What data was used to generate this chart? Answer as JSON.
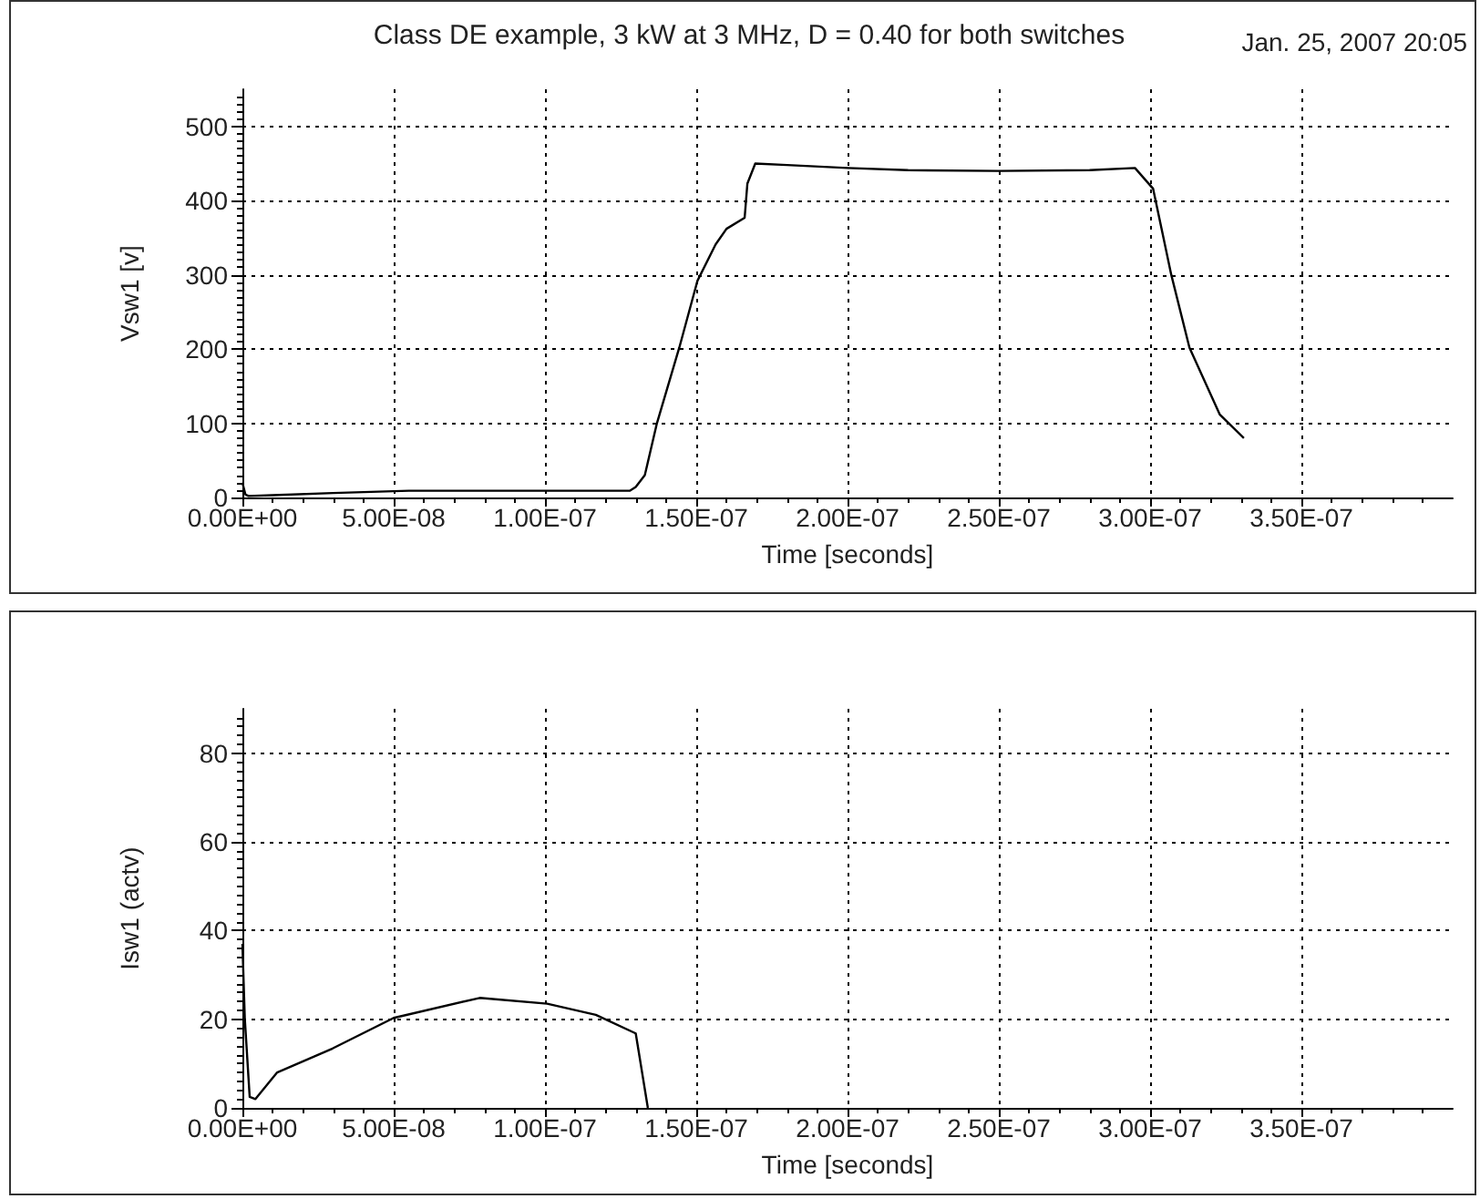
{
  "chart_data": [
    {
      "type": "line",
      "title": "Class DE example, 3 kW at 3 MHz, D = 0.40 for both switches",
      "annotations": [
        "Jan. 25, 2007  20:05"
      ],
      "xlabel": "Time [seconds]",
      "ylabel": "Vsw1 [v]",
      "x": [
        0,
        1e-09,
        2e-09,
        1e-08,
        3e-08,
        5.5e-08,
        8e-08,
        1.28e-07,
        1.3e-07,
        1.33e-07,
        1.37e-07,
        1.444e-07,
        1.504e-07,
        1.564e-07,
        1.6e-07,
        1.66e-07,
        1.669e-07,
        1.695e-07,
        1.8e-07,
        2e-07,
        2.2e-07,
        2.5e-07,
        2.8e-07,
        2.95e-07,
        3.01e-07,
        3.07e-07,
        3.13e-07,
        3.23e-07,
        3.31e-07
      ],
      "series": [
        {
          "color": "#000000",
          "values": [
            20,
            4,
            2,
            3,
            6,
            9,
            9,
            9,
            14,
            30,
            100,
            202,
            292,
            341,
            362,
            377,
            423,
            450,
            448,
            444,
            441,
            440,
            441,
            444,
            416,
            300,
            202,
            112,
            80
          ]
        }
      ],
      "xlim": [
        0,
        4e-07
      ],
      "xticks": [
        {
          "value": 0,
          "label": "0.00E+00"
        },
        {
          "value": 5e-08,
          "label": "5.00E-08"
        },
        {
          "value": 1e-07,
          "label": "1.00E-07"
        },
        {
          "value": 1.5e-07,
          "label": "1.50E-07"
        },
        {
          "value": 2e-07,
          "label": "2.00E-07"
        },
        {
          "value": 2.5e-07,
          "label": "2.50E-07"
        },
        {
          "value": 3e-07,
          "label": "3.00E-07"
        },
        {
          "value": 3.5e-07,
          "label": "3.50E-07"
        }
      ],
      "ylim": [
        0,
        550
      ],
      "yticks": [
        0,
        100,
        200,
        300,
        400,
        500
      ],
      "grid": true
    },
    {
      "type": "line",
      "xlabel": "Time [seconds]",
      "ylabel": "Isw1 (actv)",
      "x": [
        0,
        8e-10,
        2.4e-09,
        4.3e-09,
        1.15e-08,
        2.98e-08,
        5e-08,
        7.84e-08,
        1.007e-07,
        1.168e-07,
        1.3e-07,
        1.34e-07
      ],
      "series": [
        {
          "color": "#000000",
          "values": [
            37,
            20,
            2.5,
            2,
            8,
            13.4,
            20.3,
            24.8,
            23.5,
            21,
            16.8,
            0
          ]
        }
      ],
      "xlim": [
        0,
        4e-07
      ],
      "xticks": [
        {
          "value": 0,
          "label": "0.00E+00"
        },
        {
          "value": 5e-08,
          "label": "5.00E-08"
        },
        {
          "value": 1e-07,
          "label": "1.00E-07"
        },
        {
          "value": 1.5e-07,
          "label": "1.50E-07"
        },
        {
          "value": 2e-07,
          "label": "2.00E-07"
        },
        {
          "value": 2.5e-07,
          "label": "2.50E-07"
        },
        {
          "value": 3e-07,
          "label": "3.00E-07"
        },
        {
          "value": 3.5e-07,
          "label": "3.50E-07"
        }
      ],
      "ylim": [
        0,
        90
      ],
      "yticks": [
        0,
        20,
        40,
        60,
        80
      ],
      "grid": true
    }
  ]
}
